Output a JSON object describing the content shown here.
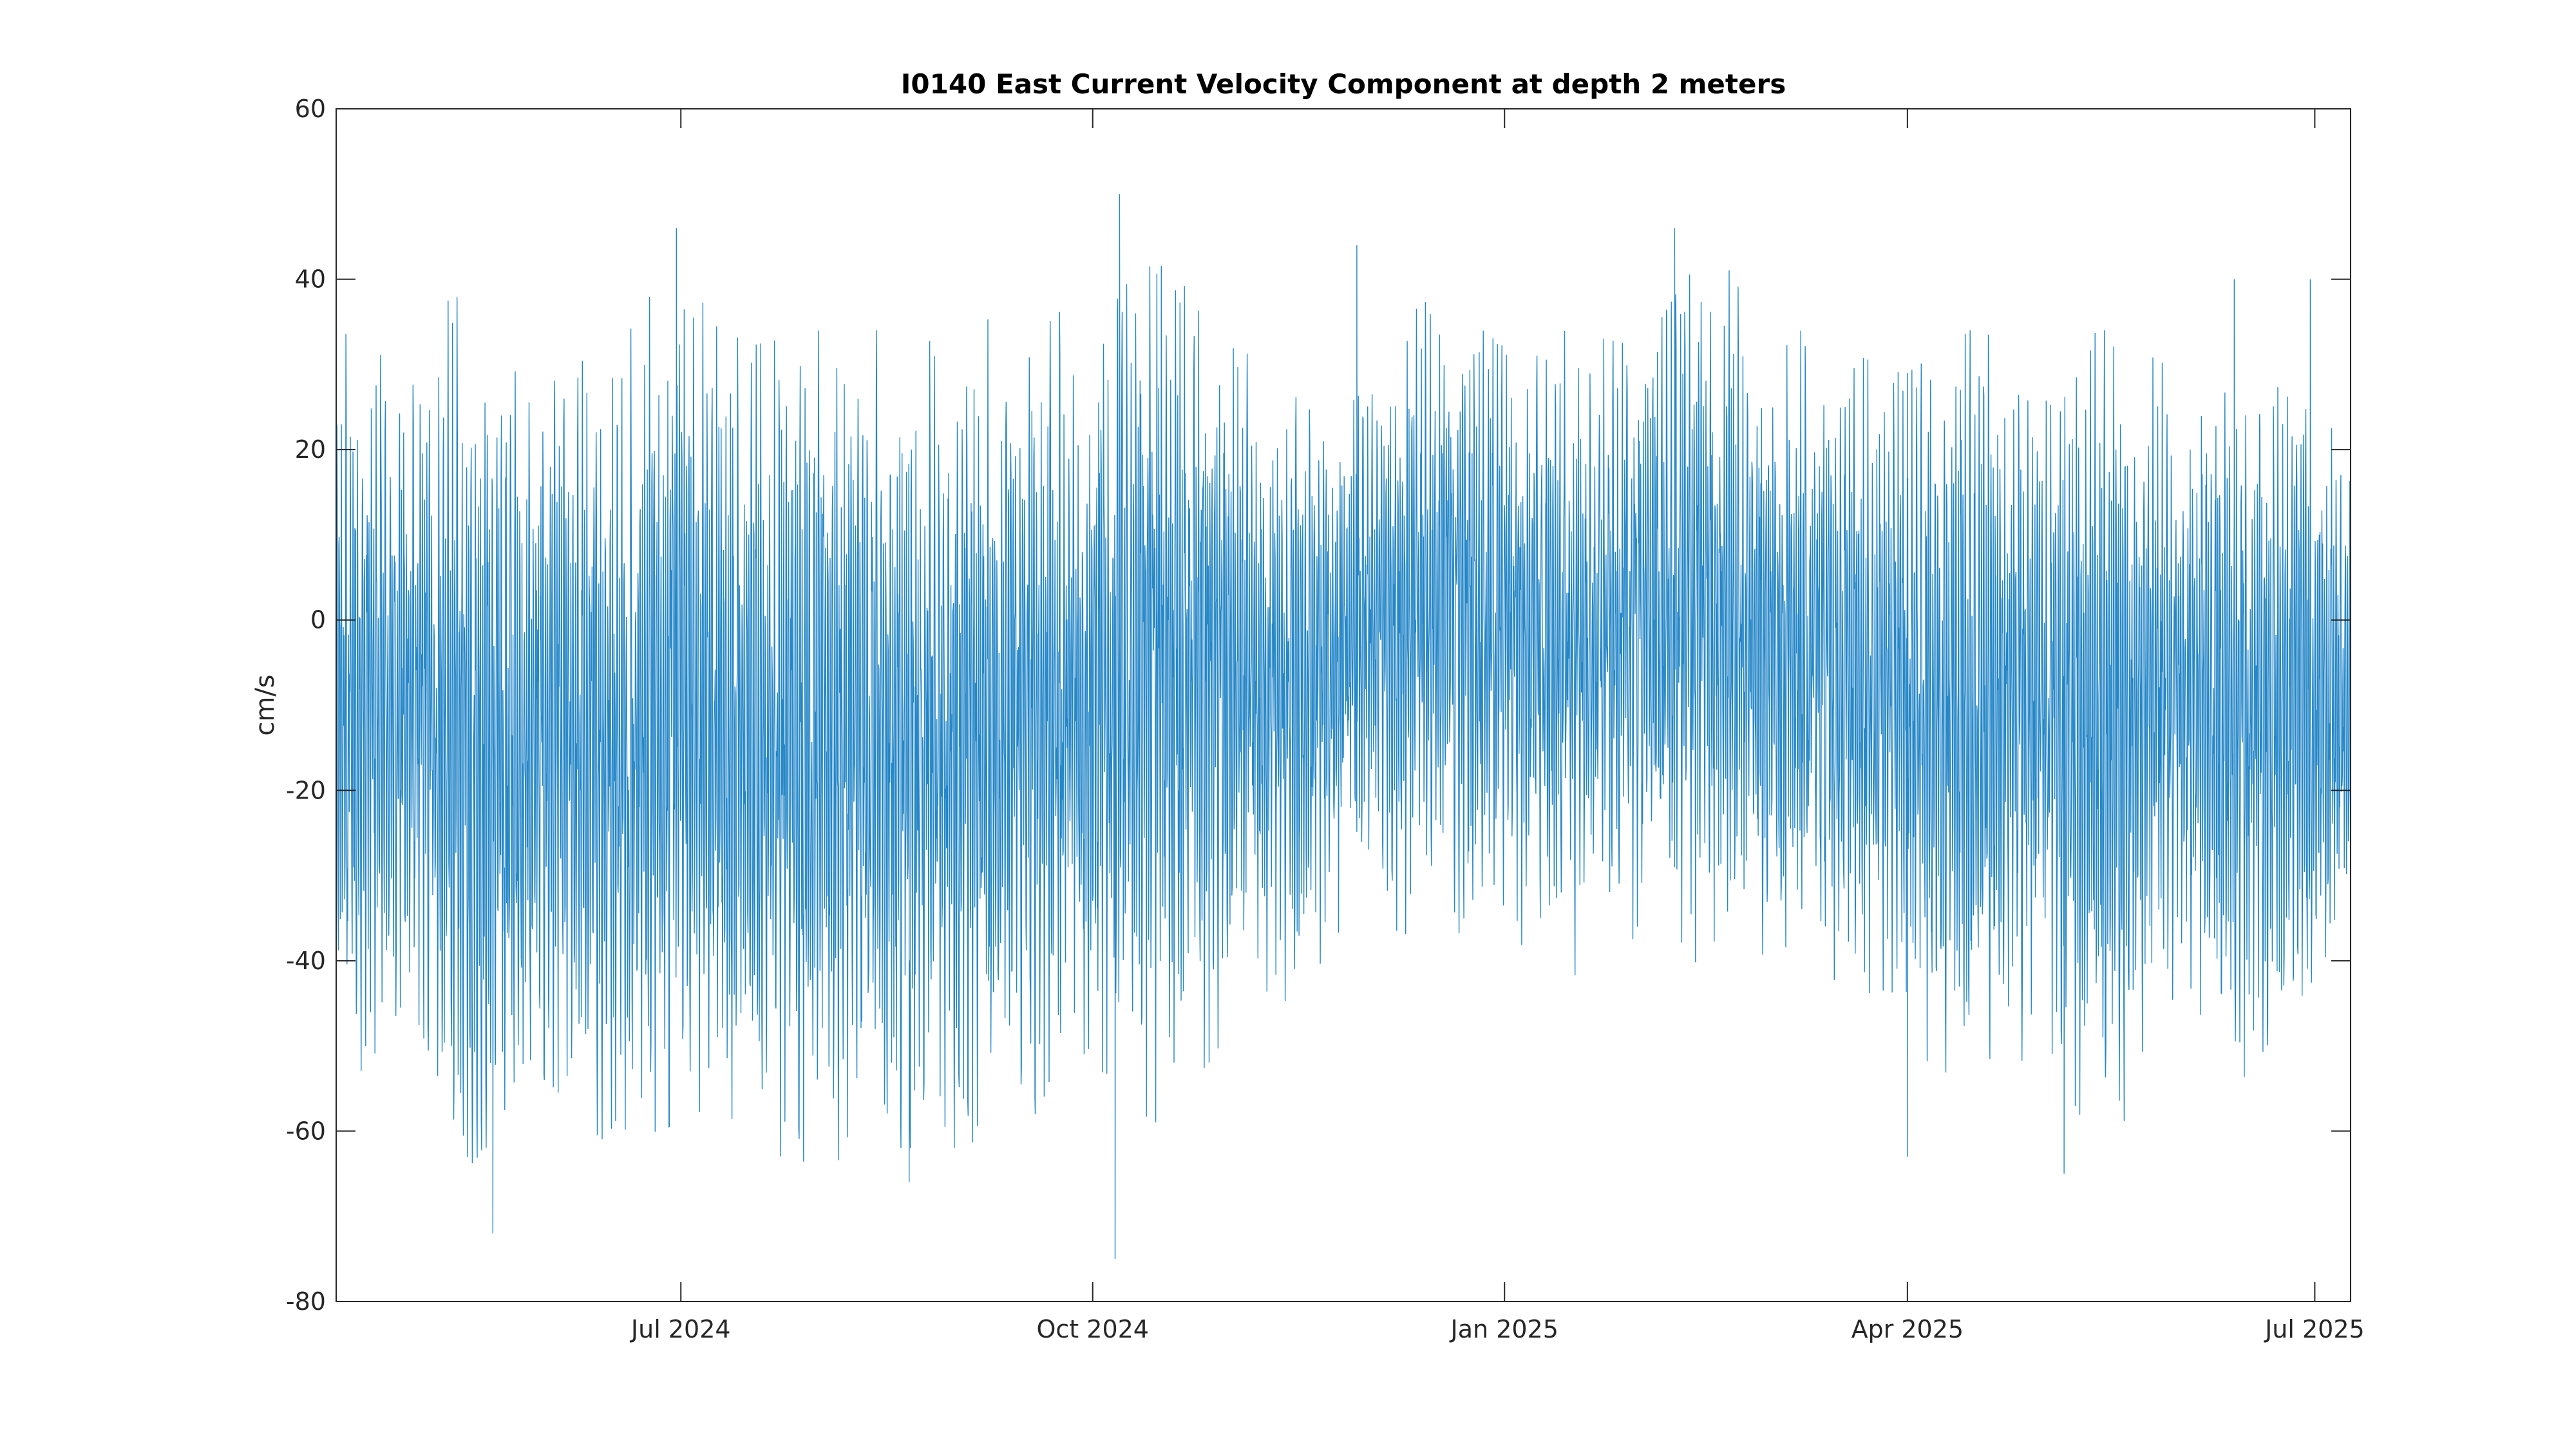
{
  "chart_data": {
    "type": "line",
    "title": "I0140 East Current Velocity Component at depth 2 meters",
    "xlabel": "",
    "ylabel": "cm/s",
    "x_range": [
      "2024-04-15",
      "2025-07-09"
    ],
    "ylim": [
      -80,
      60
    ],
    "y_ticks": [
      60,
      40,
      20,
      0,
      -20,
      -40,
      -60,
      -80
    ],
    "x_ticks": [
      {
        "date": "2024-07-01",
        "label": "Jul 2024"
      },
      {
        "date": "2024-10-01",
        "label": "Oct 2024"
      },
      {
        "date": "2025-01-01",
        "label": "Jan 2025"
      },
      {
        "date": "2025-04-01",
        "label": "Apr 2025"
      },
      {
        "date": "2025-07-01",
        "label": "Jul 2025"
      }
    ],
    "grid": false,
    "line_color": "#0072BD",
    "series": [
      {
        "sampling": "hourly (dense tidal oscillation; envelope values read from the plot)",
        "x": [
          "2024-04-15",
          "2024-05-01",
          "2024-05-15",
          "2024-06-01",
          "2024-06-15",
          "2024-07-01",
          "2024-07-15",
          "2024-08-01",
          "2024-08-15",
          "2024-09-01",
          "2024-09-15",
          "2024-10-01",
          "2024-10-15",
          "2024-11-01",
          "2024-11-15",
          "2024-12-01",
          "2024-12-15",
          "2025-01-01",
          "2025-01-15",
          "2025-02-01",
          "2025-02-15",
          "2025-03-01",
          "2025-03-15",
          "2025-04-01",
          "2025-04-15",
          "2025-05-01",
          "2025-05-15",
          "2025-06-01",
          "2025-06-15",
          "2025-07-01",
          "2025-07-09"
        ],
        "upper": [
          30,
          32,
          38,
          30,
          28,
          40,
          28,
          30,
          30,
          28,
          35,
          30,
          40,
          28,
          25,
          22,
          35,
          28,
          30,
          28,
          40,
          32,
          28,
          25,
          30,
          28,
          30,
          25,
          32,
          30,
          15
        ],
        "lower": [
          -55,
          -40,
          -60,
          -50,
          -58,
          -55,
          -58,
          -60,
          -58,
          -58,
          -55,
          -50,
          -55,
          -45,
          -40,
          -30,
          -35,
          -35,
          -38,
          -35,
          -38,
          -35,
          -38,
          -45,
          -55,
          -45,
          -60,
          -40,
          -50,
          -38,
          -30
        ],
        "mean": [
          -12,
          -10,
          -18,
          -15,
          -16,
          -10,
          -15,
          -14,
          -16,
          -15,
          -12,
          -10,
          -5,
          -8,
          -10,
          -2,
          2,
          0,
          -4,
          0,
          2,
          -2,
          -6,
          -8,
          -10,
          -10,
          -14,
          -8,
          -12,
          -10,
          -10
        ],
        "extremes": [
          {
            "x": "2024-05-20",
            "y": -72
          },
          {
            "x": "2024-06-30",
            "y": 46
          },
          {
            "x": "2024-08-21",
            "y": -66
          },
          {
            "x": "2024-10-07",
            "y": 50
          },
          {
            "x": "2024-10-06",
            "y": -75
          },
          {
            "x": "2024-11-29",
            "y": 44
          },
          {
            "x": "2025-02-08",
            "y": 46
          },
          {
            "x": "2025-04-01",
            "y": -63
          },
          {
            "x": "2025-05-06",
            "y": -65
          },
          {
            "x": "2025-06-13",
            "y": 40
          },
          {
            "x": "2025-06-30",
            "y": 40
          }
        ]
      }
    ]
  }
}
